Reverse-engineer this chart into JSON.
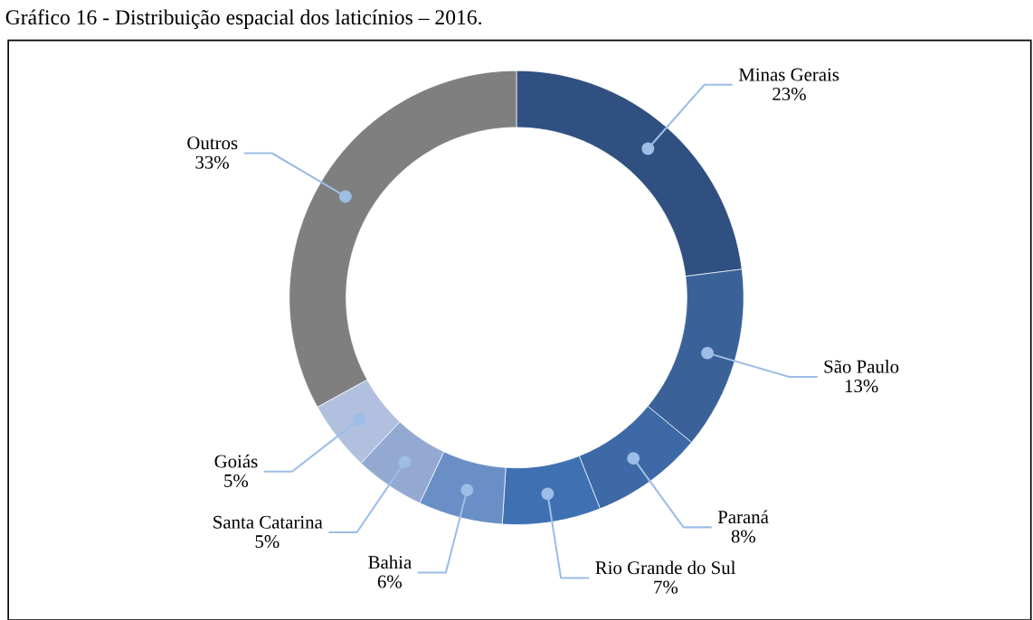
{
  "chart_data": {
    "type": "donut",
    "title": "Gráfico 16 - Distribuição espacial dos laticínios – 2016.",
    "categories": [
      "Minas Gerais",
      "São Paulo",
      "Paraná",
      "Rio Grande do Sul",
      "Bahia",
      "Santa Catarina",
      "Goiás",
      "Outros"
    ],
    "values": [
      23,
      13,
      8,
      7,
      6,
      5,
      5,
      33
    ],
    "colors": [
      "#2f5080",
      "#3a6298",
      "#3d6aa6",
      "#3f70b2",
      "#6a8fc6",
      "#93a9d2",
      "#b1c0df",
      "#7f7f7f"
    ],
    "value_labels": [
      "23%",
      "13%",
      "8%",
      "7%",
      "6%",
      "5%",
      "5%",
      "33%"
    ],
    "legend": false
  }
}
